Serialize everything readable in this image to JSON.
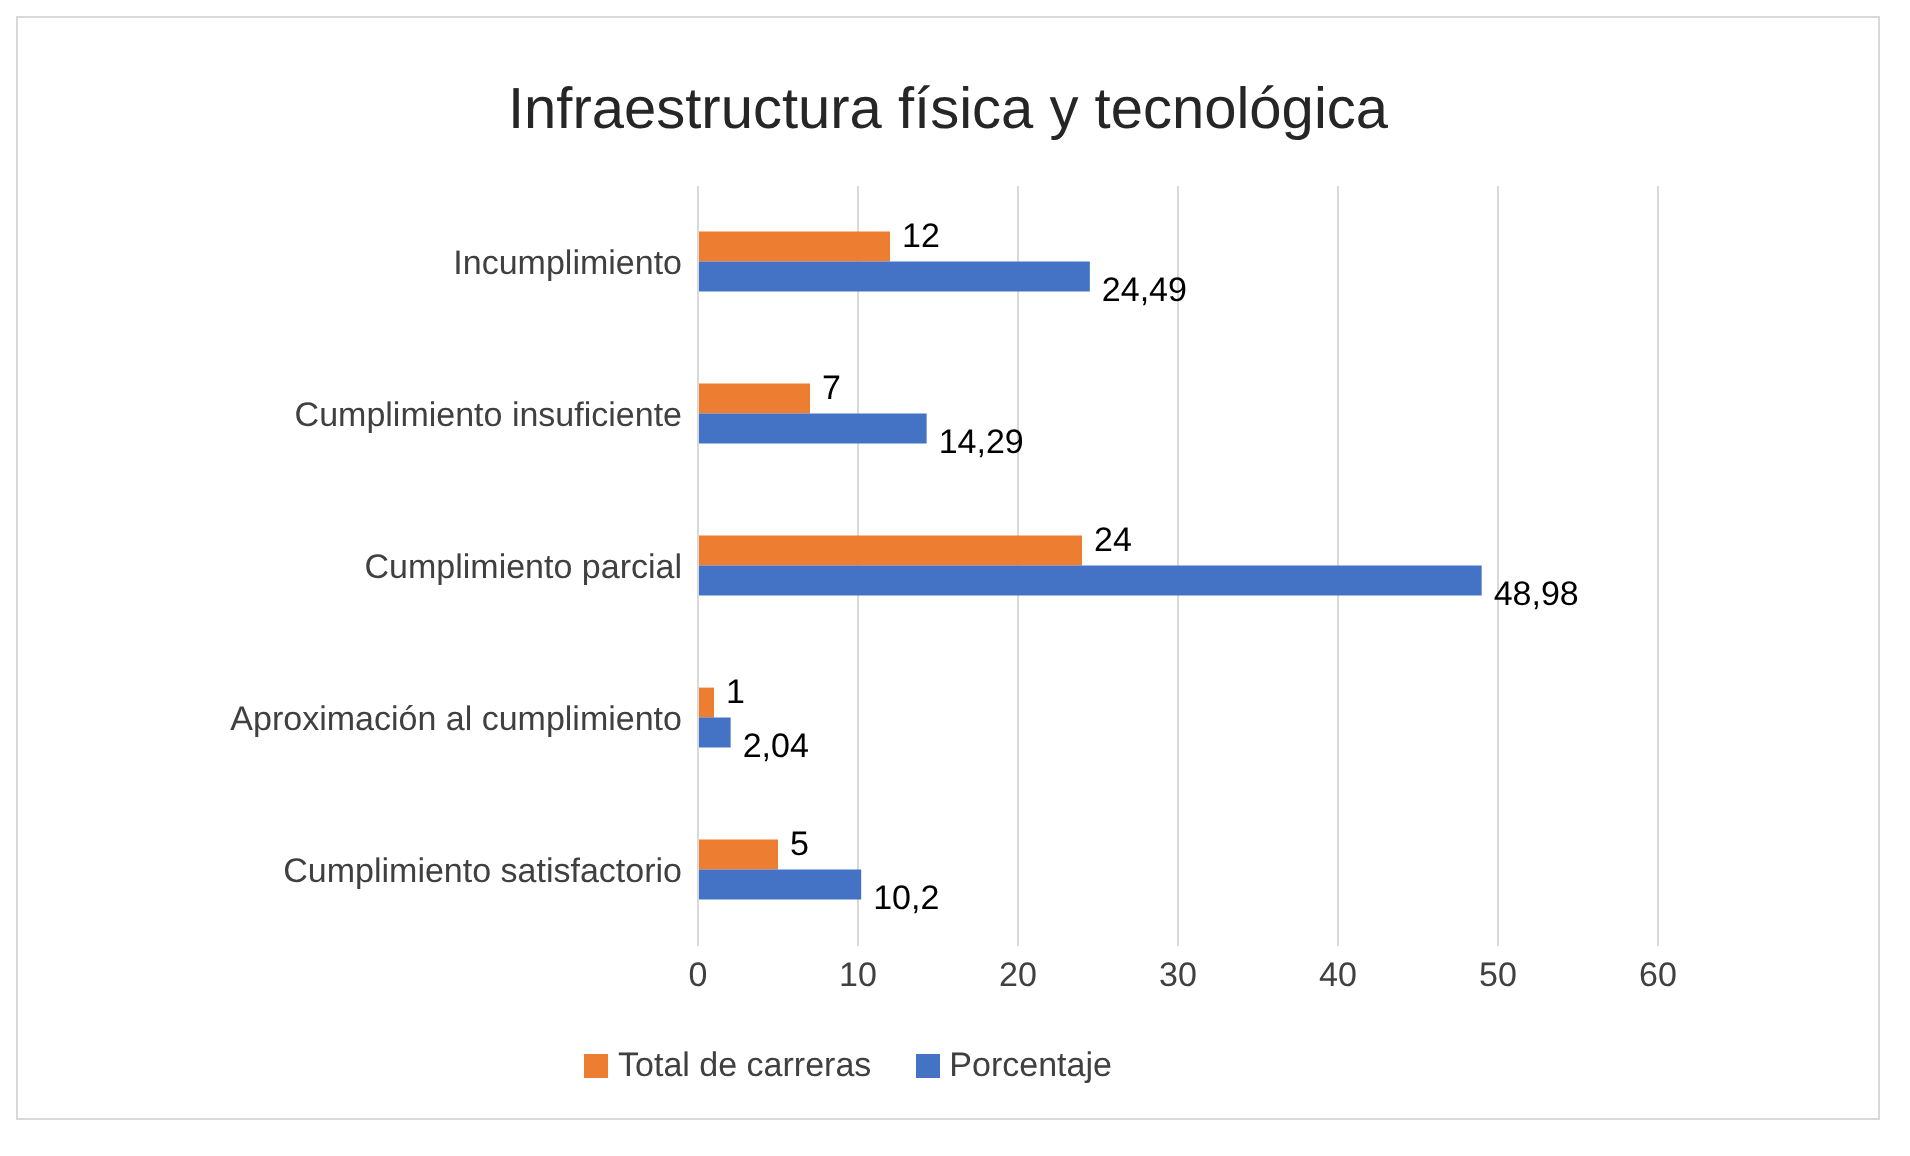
{
  "chart_data": {
    "type": "bar",
    "orientation": "horizontal",
    "title": "Infraestructura física y tecnológica",
    "categories": [
      "Incumplimiento",
      "Cumplimiento insuficiente",
      "Cumplimiento parcial",
      "Aproximación al cumplimiento",
      "Cumplimiento satisfactorio"
    ],
    "series": [
      {
        "name": "Total de carreras",
        "color": "#ed7d31",
        "values": [
          12,
          7,
          24,
          1,
          5
        ],
        "value_labels": [
          "12",
          "7",
          "24",
          "1",
          "5"
        ]
      },
      {
        "name": "Porcentaje",
        "color": "#4472c4",
        "values": [
          24.49,
          14.29,
          48.98,
          2.04,
          10.2
        ],
        "value_labels": [
          "24,49",
          "14,29",
          "48,98",
          "2,04",
          "10,2"
        ]
      }
    ],
    "xlim": [
      0,
      60
    ],
    "xticks": [
      0,
      10,
      20,
      30,
      40,
      50,
      60
    ],
    "grid": "x",
    "legend": "bottom"
  }
}
